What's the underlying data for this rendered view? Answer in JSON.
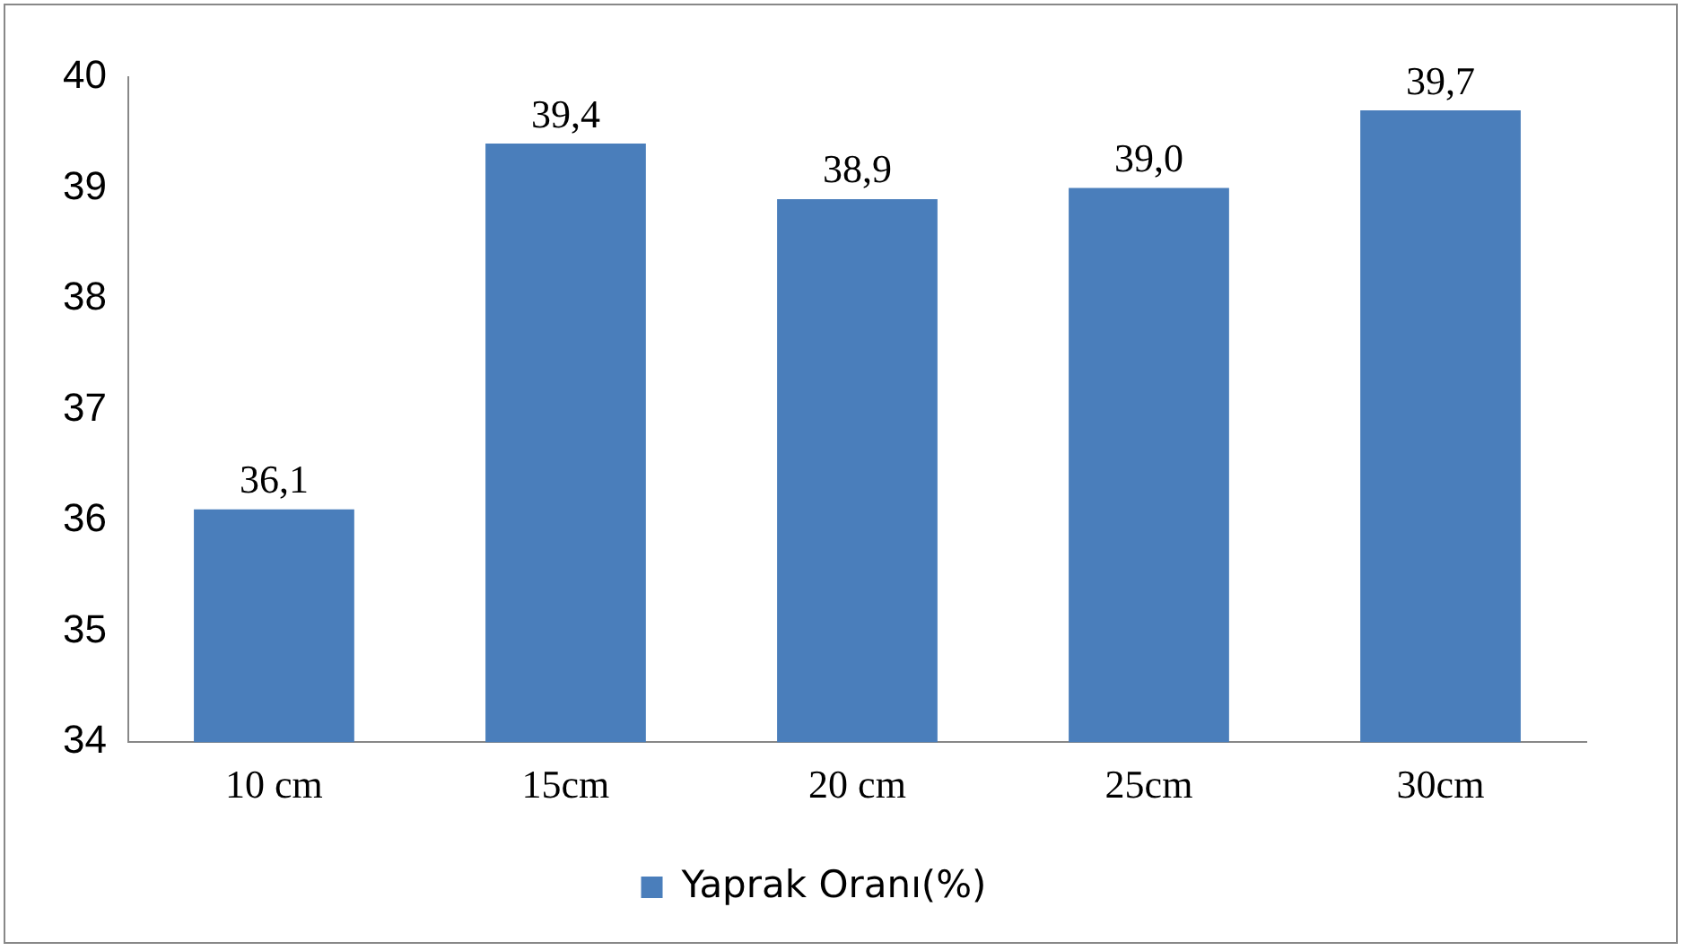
{
  "chart_data": {
    "type": "bar",
    "categories": [
      "10 cm",
      "15cm",
      "20 cm",
      "25cm",
      "30cm"
    ],
    "series": [
      {
        "name": "Yaprak Oranı(%)",
        "color": "#4a7ebb",
        "values": [
          36.1,
          39.4,
          38.9,
          39.0,
          39.7
        ],
        "value_labels": [
          "36,1",
          "39,4",
          "38,9",
          "39,0",
          "39,7"
        ]
      }
    ],
    "ylim": [
      34,
      40
    ],
    "yticks": [
      34,
      35,
      36,
      37,
      38,
      39,
      40
    ],
    "grid": false,
    "legend": "bottom"
  }
}
